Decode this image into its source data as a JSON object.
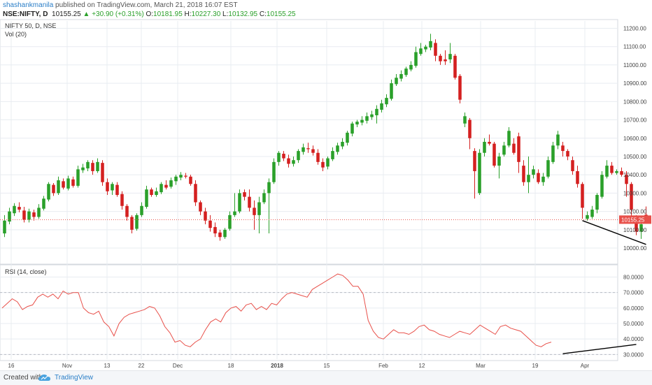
{
  "header": {
    "username": "shashankmanila",
    "published": "published on TradingView.com, March 21, 2018 16:07 EST",
    "symbol_line": "NSE:NIFTY, D",
    "price": "10155.25",
    "change_arrow": "▲",
    "change": "+30.90 (+0.31%)",
    "o_label": "O:",
    "o_value": "10181.95",
    "h_label": "H:",
    "h_value": "10227.30",
    "l_label": "L:",
    "l_value": "10132.95",
    "c_label": "C:",
    "c_value": "10155.25"
  },
  "footer": {
    "created_with": "Created with",
    "brand": "TradingView"
  },
  "colors": {
    "up": "#2aa02a",
    "down": "#d42020",
    "rsi": "#e8504a",
    "last_price_line": "#e8504a",
    "grid": "#e8ecf1"
  },
  "chart_data": [
    {
      "type": "candlestick",
      "legend": [
        "NIFTY 50, D, NSE",
        "Vol (20)"
      ],
      "ylim": [
        9920,
        11240
      ],
      "y_ticks": [
        10000,
        10100,
        10200,
        10300,
        10400,
        10500,
        10600,
        10700,
        10800,
        10900,
        11000,
        11100,
        11200
      ],
      "y_tick_labels": [
        "10000.00",
        "10100.00",
        "10200.00",
        "10300.00",
        "10400.00",
        "10500.00",
        "10600.00",
        "10700.00",
        "10800.00",
        "10900.00",
        "11000.00",
        "11100.00",
        "11200.00"
      ],
      "last_price": 10155.25,
      "last_price_label": "10155.25",
      "candles": [
        [
          10080,
          10150,
          10180,
          10060
        ],
        [
          10145,
          10200,
          10220,
          10130
        ],
        [
          10190,
          10230,
          10245,
          10175
        ],
        [
          10225,
          10210,
          10250,
          10195
        ],
        [
          10205,
          10155,
          10225,
          10140
        ],
        [
          10155,
          10200,
          10215,
          10140
        ],
        [
          10195,
          10170,
          10210,
          10150
        ],
        [
          10170,
          10220,
          10240,
          10160
        ],
        [
          10215,
          10270,
          10285,
          10205
        ],
        [
          10265,
          10350,
          10360,
          10255
        ],
        [
          10345,
          10300,
          10355,
          10285
        ],
        [
          10300,
          10370,
          10390,
          10290
        ],
        [
          10365,
          10330,
          10380,
          10320
        ],
        [
          10325,
          10380,
          10395,
          10315
        ],
        [
          10375,
          10340,
          10390,
          10330
        ],
        [
          10340,
          10430,
          10450,
          10330
        ],
        [
          10425,
          10440,
          10460,
          10410
        ],
        [
          10435,
          10470,
          10480,
          10420
        ],
        [
          10465,
          10420,
          10480,
          10400
        ],
        [
          10420,
          10470,
          10490,
          10410
        ],
        [
          10465,
          10360,
          10480,
          10340
        ],
        [
          10360,
          10310,
          10380,
          10290
        ],
        [
          10315,
          10350,
          10360,
          10290
        ],
        [
          10345,
          10290,
          10360,
          10280
        ],
        [
          10295,
          10230,
          10310,
          10210
        ],
        [
          10230,
          10170,
          10240,
          10150
        ],
        [
          10170,
          10100,
          10180,
          10080
        ],
        [
          10105,
          10180,
          10190,
          10095
        ],
        [
          10180,
          10230,
          10250,
          10170
        ],
        [
          10225,
          10320,
          10340,
          10215
        ],
        [
          10320,
          10290,
          10330,
          10280
        ],
        [
          10290,
          10310,
          10330,
          10280
        ],
        [
          10305,
          10350,
          10360,
          10295
        ],
        [
          10345,
          10330,
          10370,
          10320
        ],
        [
          10335,
          10370,
          10385,
          10325
        ],
        [
          10365,
          10390,
          10400,
          10345
        ],
        [
          10385,
          10400,
          10415,
          10370
        ],
        [
          10395,
          10390,
          10410,
          10380
        ],
        [
          10390,
          10350,
          10400,
          10340
        ],
        [
          10350,
          10250,
          10370,
          10230
        ],
        [
          10250,
          10200,
          10260,
          10180
        ],
        [
          10200,
          10150,
          10220,
          10130
        ],
        [
          10150,
          10110,
          10180,
          10090
        ],
        [
          10115,
          10080,
          10140,
          10060
        ],
        [
          10085,
          10060,
          10100,
          10040
        ],
        [
          10060,
          10100,
          10110,
          10050
        ],
        [
          10105,
          10180,
          10200,
          10095
        ],
        [
          10180,
          10200,
          10300,
          10170
        ],
        [
          10200,
          10300,
          10320,
          10190
        ],
        [
          10305,
          10280,
          10320,
          10260
        ],
        [
          10280,
          10220,
          10320,
          10200
        ],
        [
          10220,
          10180,
          10260,
          10100
        ],
        [
          10180,
          10250,
          10280,
          10080
        ],
        [
          10250,
          10300,
          10320,
          10240
        ],
        [
          10300,
          10360,
          10380,
          10080
        ],
        [
          10360,
          10470,
          10490,
          10350
        ],
        [
          10470,
          10520,
          10530,
          10450
        ],
        [
          10515,
          10490,
          10530,
          10475
        ],
        [
          10490,
          10460,
          10510,
          10440
        ],
        [
          10460,
          10480,
          10500,
          10445
        ],
        [
          10480,
          10530,
          10540,
          10465
        ],
        [
          10525,
          10550,
          10570,
          10510
        ],
        [
          10545,
          10540,
          10575,
          10520
        ],
        [
          10540,
          10520,
          10560,
          10505
        ],
        [
          10520,
          10470,
          10540,
          10455
        ],
        [
          10470,
          10440,
          10490,
          10420
        ],
        [
          10445,
          10490,
          10500,
          10430
        ],
        [
          10485,
          10530,
          10550,
          10475
        ],
        [
          10525,
          10560,
          10575,
          10510
        ],
        [
          10555,
          10580,
          10600,
          10540
        ],
        [
          10575,
          10630,
          10640,
          10560
        ],
        [
          10625,
          10680,
          10690,
          10610
        ],
        [
          10675,
          10690,
          10700,
          10660
        ],
        [
          10685,
          10700,
          10720,
          10670
        ],
        [
          10695,
          10720,
          10740,
          10680
        ],
        [
          10715,
          10730,
          10750,
          10700
        ],
        [
          10725,
          10760,
          10780,
          10680
        ],
        [
          10755,
          10790,
          10810,
          10740
        ],
        [
          10785,
          10820,
          10840,
          10770
        ],
        [
          10815,
          10900,
          10920,
          10805
        ],
        [
          10895,
          10930,
          10950,
          10885
        ],
        [
          10925,
          10950,
          10970,
          10910
        ],
        [
          10945,
          10980,
          10990,
          10935
        ],
        [
          10975,
          11000,
          11020,
          10965
        ],
        [
          10995,
          11070,
          11100,
          10985
        ],
        [
          11060,
          11090,
          11120,
          11050
        ],
        [
          11085,
          11100,
          11110,
          11070
        ],
        [
          11095,
          11130,
          11170,
          11080
        ],
        [
          11120,
          11050,
          11140,
          11020
        ],
        [
          11050,
          11020,
          11060,
          11000
        ],
        [
          11030,
          11020,
          11080,
          11000
        ],
        [
          11030,
          11060,
          11120,
          11010
        ],
        [
          11050,
          10930,
          11060,
          10920
        ],
        [
          10940,
          10810,
          10950,
          10790
        ],
        [
          10680,
          10720,
          10740,
          10660
        ],
        [
          10700,
          10600,
          10710,
          10540
        ],
        [
          10530,
          10420,
          10545,
          10270
        ],
        [
          10300,
          10520,
          10540,
          10290
        ],
        [
          10520,
          10580,
          10600,
          10500
        ],
        [
          10580,
          10570,
          10620,
          10560
        ],
        [
          10570,
          10450,
          10580,
          10440
        ],
        [
          10450,
          10500,
          10520,
          10380
        ],
        [
          10510,
          10560,
          10580,
          10500
        ],
        [
          10560,
          10640,
          10660,
          10550
        ],
        [
          10570,
          10520,
          10600,
          10510
        ],
        [
          10610,
          10470,
          10630,
          10410
        ],
        [
          10450,
          10360,
          10480,
          10340
        ],
        [
          10360,
          10400,
          10500,
          10300
        ],
        [
          10400,
          10430,
          10450,
          10380
        ],
        [
          10410,
          10360,
          10430,
          10350
        ],
        [
          10360,
          10390,
          10410,
          10340
        ],
        [
          10390,
          10480,
          10500,
          10380
        ],
        [
          10470,
          10560,
          10580,
          10460
        ],
        [
          10560,
          10620,
          10640,
          10540
        ],
        [
          10560,
          10530,
          10580,
          10500
        ],
        [
          10530,
          10500,
          10540,
          10480
        ],
        [
          10480,
          10420,
          10500,
          10400
        ],
        [
          10420,
          10350,
          10450,
          10330
        ],
        [
          10350,
          10220,
          10360,
          10160
        ],
        [
          10160,
          10180,
          10200,
          10150
        ],
        [
          10170,
          10210,
          10230,
          10160
        ],
        [
          10210,
          10290,
          10300,
          10190
        ],
        [
          10280,
          10400,
          10420,
          10270
        ],
        [
          10390,
          10450,
          10480,
          10380
        ],
        [
          10450,
          10410,
          10470,
          10400
        ],
        [
          10410,
          10420,
          10430,
          10400
        ],
        [
          10420,
          10400,
          10440,
          10390
        ],
        [
          10400,
          10350,
          10420,
          10280
        ],
        [
          10350,
          10210,
          10360,
          10170
        ],
        [
          10170,
          10090,
          10180,
          10070
        ],
        [
          10090,
          10130,
          10140,
          10050
        ],
        [
          10181.95,
          10155.25,
          10227.3,
          10132.95
        ]
      ],
      "trendline": [
        [
          10150,
          118
        ],
        [
          10020,
          131
        ]
      ]
    },
    {
      "type": "line",
      "legend": "RSI (14, close)",
      "ylim": [
        27,
        87
      ],
      "y_ticks": [
        30,
        40,
        50,
        60,
        70,
        80
      ],
      "y_tick_labels": [
        "30.0000",
        "40.0000",
        "50.0000",
        "60.0000",
        "70.0000",
        "80.0000"
      ],
      "bands": [
        30,
        70
      ],
      "values": [
        60,
        63,
        66,
        64,
        59,
        61,
        62,
        67,
        69,
        67,
        69,
        66,
        71,
        69,
        70,
        70,
        60,
        57,
        56,
        58,
        51,
        48,
        42,
        50,
        54,
        56,
        57,
        58,
        59,
        61,
        60,
        55,
        48,
        44,
        38,
        39,
        36,
        35,
        38,
        40,
        46,
        51,
        53,
        51,
        57,
        60,
        61,
        58,
        62,
        63,
        59,
        61,
        59,
        63,
        62,
        66,
        69,
        70,
        69,
        68,
        67,
        72,
        74,
        76,
        78,
        80,
        82,
        81,
        78,
        74,
        74,
        69,
        52,
        45,
        41,
        40,
        43,
        46,
        44,
        44,
        43,
        45,
        48,
        49,
        46,
        45,
        43,
        42,
        41,
        43,
        45,
        44,
        43,
        46,
        49,
        47,
        45,
        43,
        48,
        49,
        47,
        46,
        45,
        42,
        39,
        36,
        35,
        37,
        38
      ],
      "x_map_start": 0,
      "trendline": [
        [
          30.5,
          114
        ],
        [
          36.5,
          129
        ]
      ]
    }
  ],
  "x_axis": {
    "labels": [
      "16",
      "Nov",
      "13",
      "22",
      "Dec",
      "18",
      "2018",
      "15",
      "Feb",
      "12",
      "Mar",
      "19",
      "Apr"
    ],
    "bold": [
      "2018"
    ]
  }
}
